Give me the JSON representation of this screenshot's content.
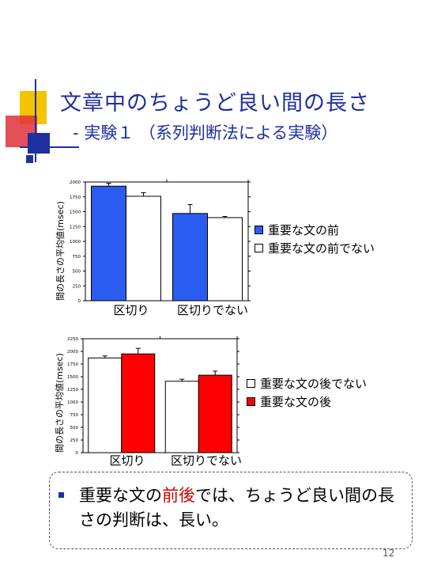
{
  "slide": {
    "title": "文章中のちょうど良い間の長さ",
    "subtitle": "- 実験１ （系列判断法による実験）",
    "page_number": "12",
    "note": {
      "prefix": "重要な文の",
      "highlight_1": "前",
      "highlight_2": "後",
      "suffix": "では、ちょうど良い間の長さの判断は、長い。"
    },
    "colors": {
      "title": "#1f2fa0",
      "blue": "#2b5cf0",
      "red": "#ff0000",
      "accent_yellow": "#f5c400",
      "accent_red": "#e0303a",
      "accent_navy": "#1f2fa0"
    }
  },
  "chart_data": [
    {
      "type": "bar",
      "ylabel": "間の長さの平均値(msec)",
      "categories": [
        "区切り",
        "区切りでない"
      ],
      "ylim": [
        0,
        2000
      ],
      "yticks": [
        "0",
        "250",
        "500",
        "750",
        "1000",
        "1250",
        "1500",
        "1750",
        "2000"
      ],
      "series": [
        {
          "name": "重要な文の前",
          "color": "#2b5cf0",
          "values": [
            1930,
            1470
          ],
          "errors": [
            50,
            150
          ]
        },
        {
          "name": "重要な文の前でない",
          "color": "#ffffff",
          "values": [
            1760,
            1400
          ],
          "errors": [
            60,
            20
          ]
        }
      ],
      "legend": "right"
    },
    {
      "type": "bar",
      "ylabel": "間の長さの平均値(msec)",
      "categories": [
        "区切り",
        "区切りでない"
      ],
      "ylim": [
        0,
        2250
      ],
      "yticks": [
        "0",
        "250",
        "500",
        "750",
        "1000",
        "1250",
        "1500",
        "1750",
        "2000",
        "2250"
      ],
      "series": [
        {
          "name": "重要な文の後でない",
          "color": "#ffffff",
          "values": [
            1870,
            1410
          ],
          "errors": [
            40,
            40
          ]
        },
        {
          "name": "重要な文の後",
          "color": "#ff0000",
          "values": [
            1950,
            1530
          ],
          "errors": [
            110,
            80
          ]
        }
      ],
      "legend": "right"
    }
  ]
}
